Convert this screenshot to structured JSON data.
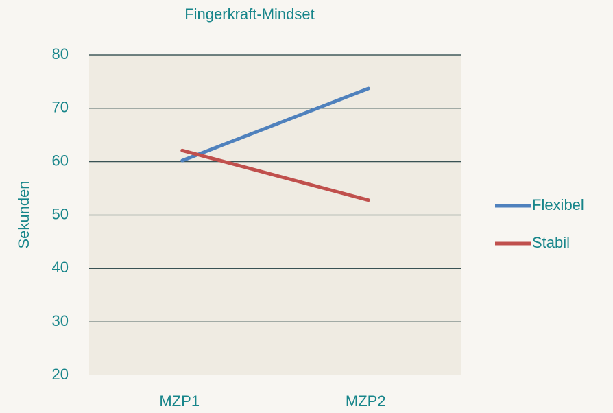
{
  "chart_data": {
    "type": "line",
    "title": "Fingerkraft-Mindset",
    "y_label": "Sekunden",
    "categories": [
      "MZP1",
      "MZP2"
    ],
    "series": [
      {
        "name": "Flexibel",
        "color": "#4f81bd",
        "values": [
          60.2,
          73.7
        ]
      },
      {
        "name": "Stabil",
        "color": "#c0504d",
        "values": [
          62.1,
          52.8
        ]
      }
    ],
    "ylim": [
      20,
      80
    ],
    "yticks": [
      20,
      30,
      40,
      50,
      60,
      70,
      80
    ],
    "grid": true,
    "legend": "right"
  }
}
